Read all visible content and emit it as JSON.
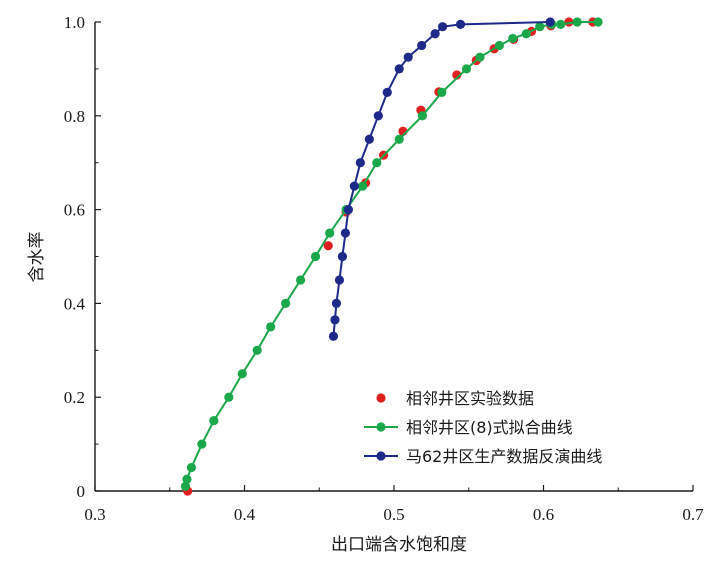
{
  "chart_data": {
    "type": "scatter",
    "xlabel": "出口端含水饱和度",
    "ylabel": "含水率",
    "xlim": [
      0.3,
      0.7
    ],
    "ylim": [
      0,
      1.0
    ],
    "xticks": [
      "0.3",
      "0.4",
      "0.5",
      "0.6",
      "0.7"
    ],
    "yticks": [
      "0",
      "0.2",
      "0.4",
      "0.6",
      "0.8",
      "1.0"
    ],
    "grid": false,
    "legend_position": "bottom-right",
    "series": [
      {
        "name": "相邻井区实验数据",
        "style": "markers",
        "color": "#e02020",
        "x": [
          0.362,
          0.456,
          0.468,
          0.481,
          0.493,
          0.506,
          0.518,
          0.53,
          0.542,
          0.555,
          0.567,
          0.58,
          0.592,
          0.605,
          0.617,
          0.633
        ],
        "y": [
          0.0,
          0.523,
          0.595,
          0.657,
          0.716,
          0.767,
          0.812,
          0.851,
          0.887,
          0.918,
          0.943,
          0.963,
          0.98,
          0.992,
          1.0,
          1.0
        ]
      },
      {
        "name": "相邻井区(8)式拟合曲线",
        "style": "line-markers",
        "color": "#1aa84a",
        "x": [
          0.3605,
          0.3615,
          0.3645,
          0.3715,
          0.3795,
          0.3895,
          0.3985,
          0.4085,
          0.4175,
          0.4275,
          0.4375,
          0.4475,
          0.457,
          0.468,
          0.479,
          0.4885,
          0.5035,
          0.519,
          0.532,
          0.5485,
          0.5575,
          0.5705,
          0.5795,
          0.5885,
          0.5975,
          0.6055,
          0.6115,
          0.6225,
          0.6365
        ],
        "y": [
          0.01,
          0.025,
          0.05,
          0.1,
          0.15,
          0.2,
          0.25,
          0.3,
          0.35,
          0.4,
          0.45,
          0.5,
          0.55,
          0.6,
          0.65,
          0.7,
          0.75,
          0.8,
          0.85,
          0.9,
          0.925,
          0.95,
          0.965,
          0.975,
          0.99,
          0.995,
          0.995,
          1.0,
          1.0
        ]
      },
      {
        "name": "马62井区生产数据反演曲线",
        "style": "line-markers",
        "color": "#1e2a8a",
        "x": [
          0.4595,
          0.4605,
          0.4615,
          0.4635,
          0.4655,
          0.4675,
          0.4695,
          0.4735,
          0.4775,
          0.4835,
          0.4895,
          0.4955,
          0.5035,
          0.5095,
          0.5185,
          0.5275,
          0.5325,
          0.5445,
          0.6045
        ],
        "y": [
          0.33,
          0.365,
          0.4,
          0.45,
          0.5,
          0.55,
          0.6,
          0.65,
          0.7,
          0.75,
          0.8,
          0.85,
          0.9,
          0.925,
          0.95,
          0.975,
          0.99,
          0.995,
          1.0
        ]
      }
    ]
  }
}
